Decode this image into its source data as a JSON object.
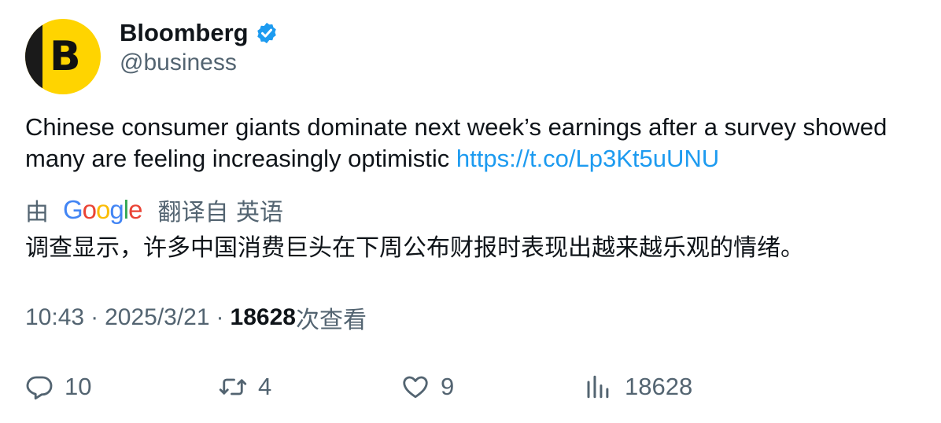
{
  "author": {
    "display_name": "Bloomberg",
    "handle": "@business",
    "avatar_letter": "B",
    "verified": true
  },
  "tweet": {
    "text": "Chinese consumer giants dominate next week’s earnings after a survey showed many are feeling increasingly optimistic ",
    "link": "https://t.co/Lp3Kt5uUNU"
  },
  "translation": {
    "prefix": "由",
    "provider_letters": [
      "G",
      "o",
      "o",
      "g",
      "l",
      "e"
    ],
    "suffix": "翻译自 英语",
    "text": "调查显示，许多中国消费巨头在下周公布财报时表现出越来越乐观的情绪。"
  },
  "meta": {
    "time": "10:43",
    "separator": "·",
    "date": "2025/3/21",
    "views_count": "18628",
    "views_label": "次查看"
  },
  "actions": {
    "replies": "10",
    "retweets": "4",
    "likes": "9",
    "views": "18628"
  },
  "colors": {
    "link": "#1d9bf0",
    "secondary_text": "#536471",
    "avatar_bg": "#ffd400",
    "verified": "#1d9bf0"
  },
  "icons": {
    "verified": "verified-badge-icon",
    "reply": "reply-icon",
    "retweet": "retweet-icon",
    "like": "heart-icon",
    "views": "bar-chart-icon"
  }
}
